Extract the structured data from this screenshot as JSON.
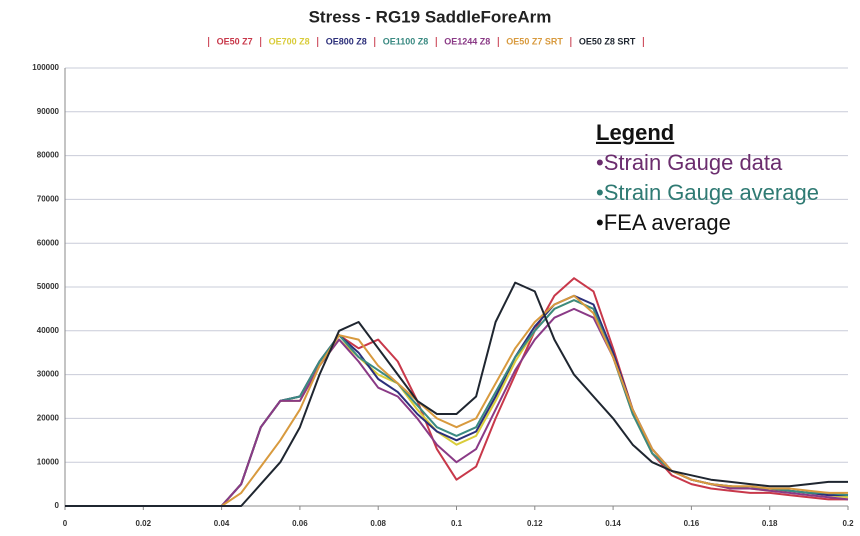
{
  "chart_data": {
    "type": "line",
    "title": "Stress - RG19 SaddleForeArm",
    "annotations": [
      {
        "text": "Legend",
        "color": "#111111"
      },
      {
        "text": "•Strain Gauge data",
        "color": "#6b2d6e"
      },
      {
        "text": "•Strain Gauge average",
        "color": "#2f7a73"
      },
      {
        "text": "•FEA average",
        "color": "#111111"
      }
    ],
    "x": [
      0,
      0.005,
      0.01,
      0.015,
      0.02,
      0.025,
      0.03,
      0.035,
      0.04,
      0.045,
      0.05,
      0.055,
      0.06,
      0.065,
      0.07,
      0.075,
      0.08,
      0.085,
      0.09,
      0.095,
      0.1,
      0.105,
      0.11,
      0.115,
      0.12,
      0.125,
      0.13,
      0.135,
      0.14,
      0.145,
      0.15,
      0.155,
      0.16,
      0.165,
      0.17,
      0.175,
      0.18,
      0.185,
      0.19,
      0.195,
      0.2
    ],
    "series": [
      {
        "name": "OE50 Z7",
        "color": "#c8384a",
        "values": [
          0,
          0,
          0,
          0,
          0,
          0,
          0,
          0,
          0,
          5000,
          18000,
          24000,
          25000,
          33000,
          39000,
          36000,
          38000,
          33000,
          24000,
          13000,
          6000,
          9000,
          20000,
          30000,
          40000,
          48000,
          52000,
          49000,
          36000,
          22000,
          12000,
          7000,
          5000,
          4000,
          3500,
          3000,
          3000,
          2500,
          2000,
          1500,
          1500
        ]
      },
      {
        "name": "OE700 Z8",
        "color": "#d9cc3a",
        "values": [
          0,
          0,
          0,
          0,
          0,
          0,
          0,
          0,
          0,
          5000,
          18000,
          24000,
          24000,
          32000,
          38000,
          34000,
          30000,
          28000,
          22000,
          17000,
          14000,
          16000,
          24000,
          33000,
          40000,
          45000,
          47000,
          45000,
          34000,
          21000,
          12000,
          8000,
          6000,
          5000,
          4000,
          4000,
          3500,
          3500,
          3000,
          2500,
          2000
        ]
      },
      {
        "name": "OE800 Z8",
        "color": "#2c2f7a",
        "values": [
          0,
          0,
          0,
          0,
          0,
          0,
          0,
          0,
          0,
          5000,
          18000,
          24000,
          25000,
          33000,
          39000,
          35000,
          29000,
          26000,
          21000,
          17000,
          15000,
          17000,
          25000,
          34000,
          41000,
          46000,
          48000,
          46000,
          35000,
          22000,
          13000,
          8000,
          6000,
          5000,
          4500,
          4000,
          4000,
          3500,
          3000,
          2500,
          2500
        ]
      },
      {
        "name": "OE1100 Z8",
        "color": "#3a8a82",
        "values": [
          0,
          0,
          0,
          0,
          0,
          0,
          0,
          0,
          0,
          5000,
          18000,
          24000,
          25000,
          33000,
          39000,
          34000,
          31000,
          28000,
          23000,
          18000,
          16000,
          18000,
          26000,
          34000,
          40000,
          45000,
          47000,
          45000,
          34000,
          21000,
          12000,
          8000,
          6000,
          5000,
          4500,
          4000,
          4000,
          3500,
          3000,
          3000,
          2500
        ]
      },
      {
        "name": "OE1244 Z8",
        "color": "#8a3a86",
        "values": [
          0,
          0,
          0,
          0,
          0,
          0,
          0,
          0,
          0,
          5000,
          18000,
          24000,
          24000,
          32000,
          38000,
          33000,
          27000,
          25000,
          20000,
          14000,
          10000,
          13000,
          22000,
          31000,
          38000,
          43000,
          45000,
          43000,
          34000,
          22000,
          13000,
          8000,
          6000,
          5000,
          4000,
          4000,
          3500,
          3000,
          2500,
          2000,
          1500
        ]
      },
      {
        "name": "OE50 Z7 SRT",
        "color": "#d89a3e",
        "values": [
          0,
          0,
          0,
          0,
          0,
          0,
          0,
          0,
          0,
          3000,
          9000,
          15000,
          22000,
          32000,
          39000,
          38000,
          32000,
          28000,
          24000,
          20000,
          18000,
          20000,
          28000,
          36000,
          42000,
          46000,
          48000,
          44000,
          34000,
          22000,
          13000,
          8000,
          6000,
          5000,
          4500,
          4500,
          4000,
          4000,
          3500,
          3000,
          3000
        ]
      },
      {
        "name": "OE50 Z8 SRT",
        "color": "#1f2630",
        "values": [
          0,
          0,
          0,
          0,
          0,
          0,
          0,
          0,
          0,
          0,
          5000,
          10000,
          18000,
          30000,
          40000,
          42000,
          36000,
          30000,
          24000,
          21000,
          21000,
          25000,
          42000,
          51000,
          49000,
          38000,
          30000,
          25000,
          20000,
          14000,
          10000,
          8000,
          7000,
          6000,
          5500,
          5000,
          4500,
          4500,
          5000,
          5500,
          5500
        ]
      }
    ],
    "xlim": [
      0,
      0.2
    ],
    "xticks": [
      0,
      0.02,
      0.04,
      0.06,
      0.08,
      0.1,
      0.12,
      0.14,
      0.16,
      0.18,
      0.2
    ],
    "ylim": [
      0,
      100000
    ],
    "yticks": [
      0,
      10000,
      20000,
      30000,
      40000,
      50000,
      60000,
      70000,
      80000,
      90000,
      100000
    ],
    "grid": true
  }
}
